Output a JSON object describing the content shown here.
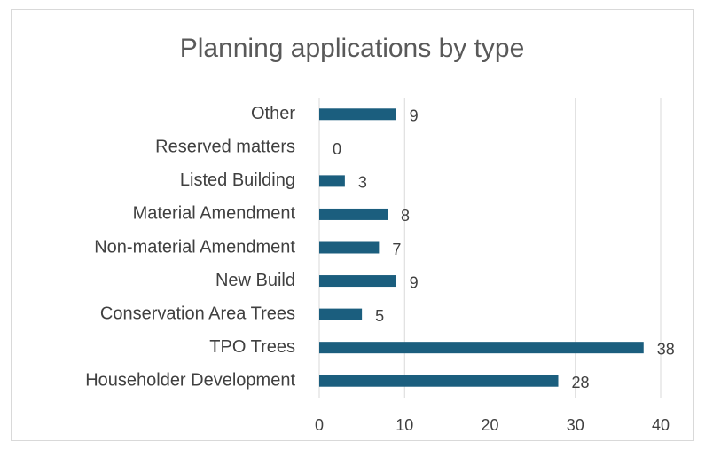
{
  "chart_data": {
    "type": "bar",
    "orientation": "horizontal",
    "title": "Planning applications by type",
    "categories": [
      "Householder Development",
      "TPO Trees",
      "Conservation Area Trees",
      "New Build",
      "Non-material Amendment",
      "Material Amendment",
      "Listed Building",
      "Reserved matters",
      "Other"
    ],
    "values": [
      28,
      38,
      5,
      9,
      7,
      8,
      3,
      0,
      9
    ],
    "color": "#1b5e7e",
    "xlim": [
      0,
      40
    ],
    "xticks": [
      0,
      10,
      20,
      30,
      40
    ],
    "grid": true
  }
}
